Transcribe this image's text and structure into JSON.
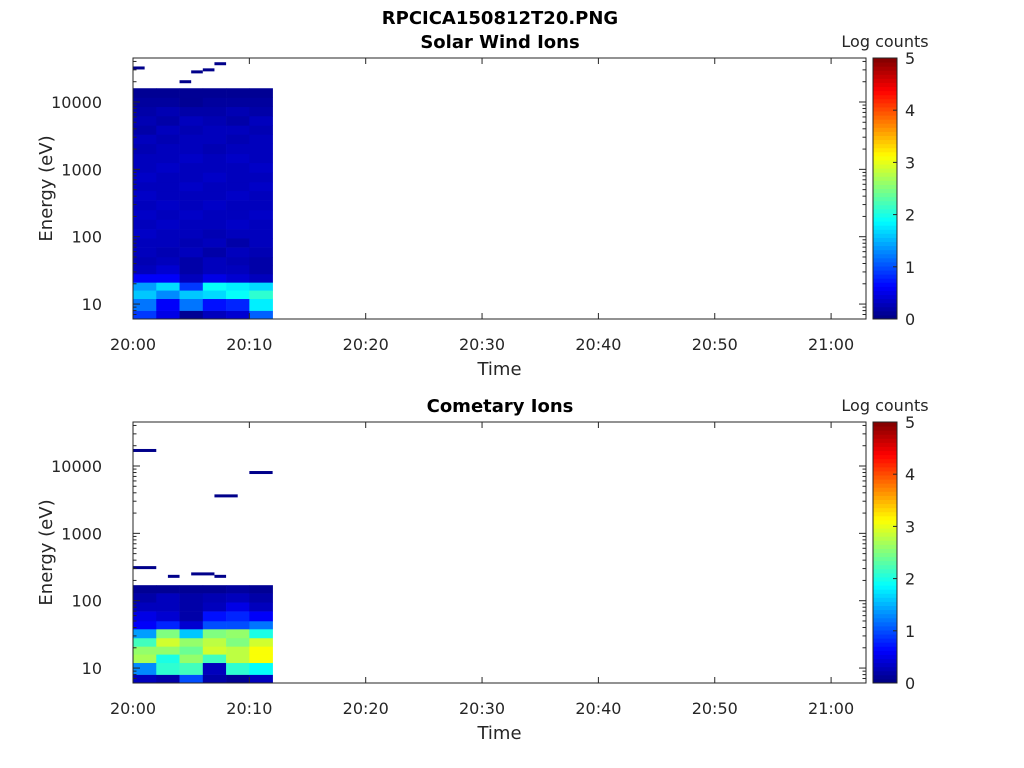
{
  "figure_title": "RPCICA150812T20.PNG",
  "chart_data": [
    {
      "type": "heatmap",
      "title": "Solar Wind Ions",
      "xlabel": "Time",
      "ylabel": "Energy (eV)",
      "yscale": "log",
      "ylim": [
        6,
        45000
      ],
      "xlim": [
        "20:00",
        "21:03"
      ],
      "x_tick_labels": [
        "20:00",
        "20:10",
        "20:20",
        "20:30",
        "20:40",
        "20:50",
        "21:00"
      ],
      "y_tick_labels": [
        "10",
        "100",
        "1000",
        "10000"
      ],
      "colorbar": {
        "label": "Log counts",
        "range": [
          0,
          5
        ],
        "ticks": [
          "0",
          "1",
          "2",
          "3",
          "4",
          "5"
        ],
        "colormap": "jet"
      },
      "time_bins": [
        "20:00",
        "20:02",
        "20:04",
        "20:06",
        "20:08",
        "20:10",
        "20:12"
      ],
      "energy_bins_eV": [
        6,
        8,
        12,
        16,
        21,
        28,
        38,
        50,
        70,
        95,
        130,
        180,
        250,
        350,
        480,
        650,
        900,
        1250,
        1700,
        2400,
        3300,
        4500,
        6200,
        8500,
        11700,
        16000
      ],
      "log_counts": [
        [
          0.9,
          0.5,
          0.1,
          0.3,
          0.4,
          1.1
        ],
        [
          1.2,
          0.6,
          1.2,
          0.7,
          0.8,
          1.8
        ],
        [
          1.6,
          1.3,
          1.6,
          1.7,
          1.9,
          2.1
        ],
        [
          1.4,
          1.7,
          0.9,
          1.9,
          1.8,
          1.7
        ],
        [
          0.6,
          0.6,
          0.3,
          0.5,
          0.4,
          0.3
        ],
        [
          0.3,
          0.4,
          0.2,
          0.3,
          0.3,
          0.2
        ],
        [
          0.25,
          0.3,
          0.2,
          0.3,
          0.25,
          0.2
        ],
        [
          0.3,
          0.25,
          0.3,
          0.2,
          0.3,
          0.25
        ],
        [
          0.3,
          0.3,
          0.25,
          0.3,
          0.2,
          0.3
        ],
        [
          0.35,
          0.3,
          0.3,
          0.25,
          0.3,
          0.3
        ],
        [
          0.3,
          0.35,
          0.3,
          0.3,
          0.35,
          0.3
        ],
        [
          0.35,
          0.3,
          0.35,
          0.3,
          0.3,
          0.35
        ],
        [
          0.3,
          0.35,
          0.3,
          0.35,
          0.3,
          0.3
        ],
        [
          0.35,
          0.3,
          0.3,
          0.3,
          0.35,
          0.3
        ],
        [
          0.3,
          0.3,
          0.35,
          0.3,
          0.3,
          0.35
        ],
        [
          0.35,
          0.3,
          0.3,
          0.35,
          0.3,
          0.3
        ],
        [
          0.3,
          0.35,
          0.3,
          0.3,
          0.3,
          0.35
        ],
        [
          0.3,
          0.3,
          0.35,
          0.3,
          0.35,
          0.3
        ],
        [
          0.25,
          0.3,
          0.3,
          0.25,
          0.3,
          0.3
        ],
        [
          0.3,
          0.25,
          0.3,
          0.3,
          0.25,
          0.3
        ],
        [
          0.2,
          0.3,
          0.25,
          0.3,
          0.3,
          0.25
        ],
        [
          0.25,
          0.2,
          0.3,
          0.25,
          0.2,
          0.3
        ],
        [
          0.2,
          0.25,
          0.2,
          0.2,
          0.25,
          0.2
        ],
        [
          0.15,
          0.15,
          0.1,
          0.15,
          0.15,
          0.15
        ],
        [
          0.1,
          0.1,
          0.1,
          0.1,
          0.1,
          0.1
        ]
      ],
      "sparse_segments": [
        {
          "t0": "20:00",
          "t1": "20:01",
          "energy_eV": 32000,
          "log_count": 0.05
        },
        {
          "t0": "20:04",
          "t1": "20:05",
          "energy_eV": 20000,
          "log_count": 0.05
        },
        {
          "t0": "20:05",
          "t1": "20:06",
          "energy_eV": 28000,
          "log_count": 0.05
        },
        {
          "t0": "20:06",
          "t1": "20:07",
          "energy_eV": 30000,
          "log_count": 0.05
        },
        {
          "t0": "20:07",
          "t1": "20:08",
          "energy_eV": 37000,
          "log_count": 0.05
        }
      ]
    },
    {
      "type": "heatmap",
      "title": "Cometary Ions",
      "xlabel": "Time",
      "ylabel": "Energy (eV)",
      "yscale": "log",
      "ylim": [
        6,
        45000
      ],
      "xlim": [
        "20:00",
        "21:03"
      ],
      "x_tick_labels": [
        "20:00",
        "20:10",
        "20:20",
        "20:30",
        "20:40",
        "20:50",
        "21:00"
      ],
      "y_tick_labels": [
        "10",
        "100",
        "1000",
        "10000"
      ],
      "colorbar": {
        "label": "Log counts",
        "range": [
          0,
          5
        ],
        "ticks": [
          "0",
          "1",
          "2",
          "3",
          "4",
          "5"
        ],
        "colormap": "jet"
      },
      "time_bins": [
        "20:00",
        "20:02",
        "20:04",
        "20:06",
        "20:08",
        "20:10",
        "20:12"
      ],
      "energy_bins_eV": [
        6,
        8,
        12,
        16,
        21,
        28,
        38,
        50,
        70,
        95,
        130,
        170
      ],
      "log_counts": [
        [
          0.3,
          0.2,
          1.0,
          0.2,
          0.1,
          0.3
        ],
        [
          1.3,
          2.1,
          2.2,
          0.3,
          2.1,
          1.9
        ],
        [
          2.7,
          2.0,
          2.6,
          2.2,
          2.8,
          3.1
        ],
        [
          2.6,
          2.6,
          2.4,
          2.9,
          2.8,
          3.1
        ],
        [
          2.2,
          2.9,
          2.6,
          2.8,
          2.5,
          2.9
        ],
        [
          1.4,
          2.5,
          1.6,
          2.5,
          2.6,
          2.0
        ],
        [
          0.6,
          0.8,
          0.4,
          1.0,
          1.0,
          1.2
        ],
        [
          0.5,
          0.4,
          0.2,
          0.7,
          0.8,
          0.6
        ],
        [
          0.3,
          0.3,
          0.2,
          0.3,
          0.5,
          0.3
        ],
        [
          0.2,
          0.3,
          0.2,
          0.25,
          0.3,
          0.2
        ],
        [
          0.1,
          0.1,
          0.1,
          0.1,
          0.15,
          0.1
        ]
      ],
      "sparse_segments": [
        {
          "t0": "20:00",
          "t1": "20:02",
          "energy_eV": 17000,
          "log_count": 0.05
        },
        {
          "t0": "20:00",
          "t1": "20:02",
          "energy_eV": 310,
          "log_count": 0.05
        },
        {
          "t0": "20:03",
          "t1": "20:04",
          "energy_eV": 230,
          "log_count": 0.05
        },
        {
          "t0": "20:05",
          "t1": "20:07",
          "energy_eV": 250,
          "log_count": 0.05
        },
        {
          "t0": "20:07",
          "t1": "20:08",
          "energy_eV": 230,
          "log_count": 0.05
        },
        {
          "t0": "20:07",
          "t1": "20:09",
          "energy_eV": 3600,
          "log_count": 0.05
        },
        {
          "t0": "20:10",
          "t1": "20:12",
          "energy_eV": 8000,
          "log_count": 0.05
        }
      ]
    }
  ]
}
